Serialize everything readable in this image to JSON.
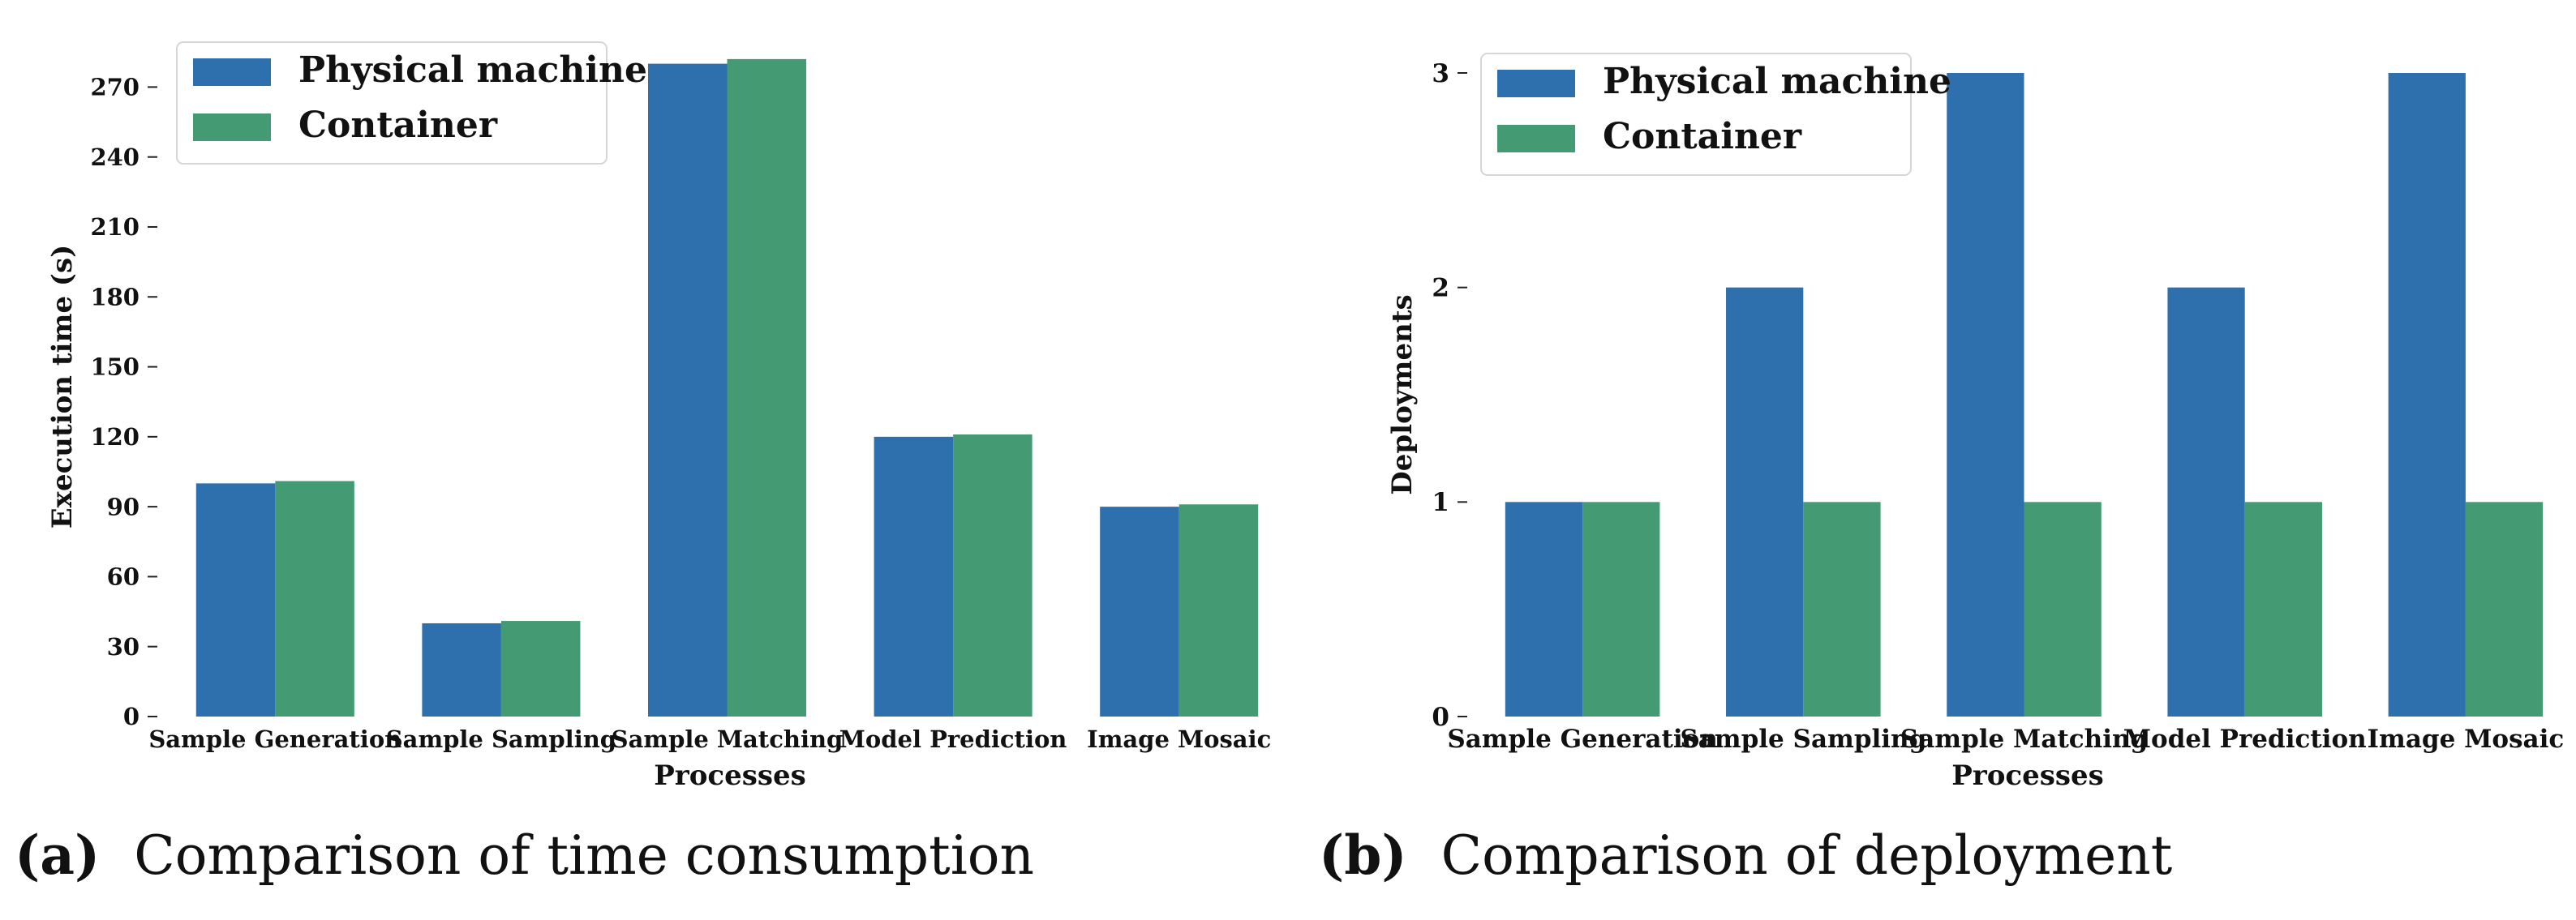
{
  "colors": {
    "physical": "#2e6fad",
    "container": "#449a73",
    "axis": "#222222"
  },
  "chart_data": [
    {
      "type": "bar",
      "title": "",
      "xlabel": "Processes",
      "ylabel": "Execution time (s)",
      "categories": [
        "Sample Generation",
        "Sample Sampling",
        "Sample Matching",
        "Model Prediction",
        "Image Mosaic"
      ],
      "series": [
        {
          "name": "Physical machine",
          "values": [
            100,
            40,
            280,
            120,
            90
          ]
        },
        {
          "name": "Container",
          "values": [
            101,
            41,
            282,
            121,
            91
          ]
        }
      ],
      "ylim": [
        0,
        283
      ],
      "yticks": [
        0,
        30,
        60,
        90,
        120,
        150,
        180,
        210,
        240,
        270
      ],
      "legend": "top-left"
    },
    {
      "type": "bar",
      "title": "",
      "xlabel": "Processes",
      "ylabel": "Deployments",
      "categories": [
        "Sample Generation",
        "Sample Sampling",
        "Sample Matching",
        "Model Prediction",
        "Image Mosaic"
      ],
      "series": [
        {
          "name": "Physical machine",
          "values": [
            1,
            2,
            3,
            2,
            3
          ]
        },
        {
          "name": "Container",
          "values": [
            1,
            1,
            1,
            1,
            1
          ]
        }
      ],
      "ylim": [
        0,
        3
      ],
      "yticks": [
        0,
        1,
        2,
        3
      ],
      "legend": "top-left"
    }
  ],
  "captions": [
    {
      "letter": "(a)",
      "text": "Comparison of time consumption"
    },
    {
      "letter": "(b)",
      "text": "Comparison of deployment"
    }
  ]
}
